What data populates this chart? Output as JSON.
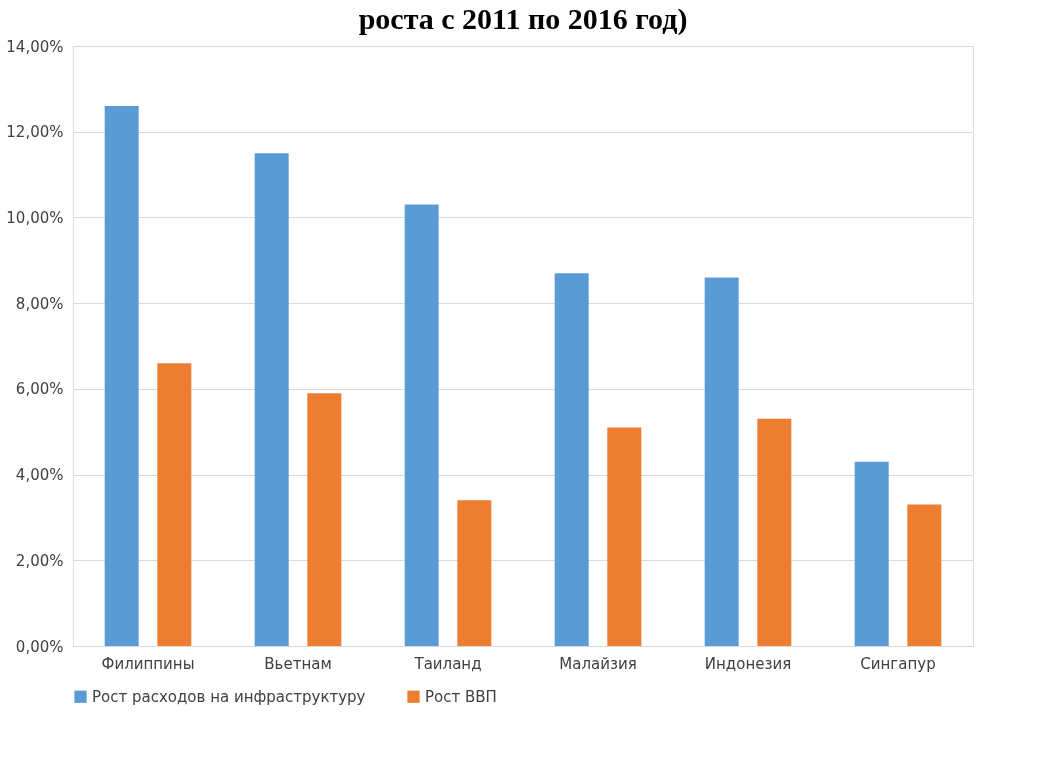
{
  "chart_data": {
    "type": "bar",
    "title": "роста с 2011 по 2016 год)",
    "categories": [
      "Филиппины",
      "Вьетнам",
      "Таиланд",
      "Малайзия",
      "Индонезия",
      "Сингапур"
    ],
    "series": [
      {
        "name": "Рост расходов на инфраструктуру",
        "color": "#5b9bd5",
        "values": [
          12.6,
          11.5,
          10.3,
          8.7,
          8.6,
          4.3
        ]
      },
      {
        "name": "Рост ВВП",
        "color": "#ed7d31",
        "values": [
          6.6,
          5.9,
          3.4,
          5.1,
          5.3,
          3.3
        ]
      }
    ],
    "ylim": [
      0,
      14
    ],
    "yticks": [
      {
        "value": 0,
        "label": "0,00%"
      },
      {
        "value": 2,
        "label": "2,00%"
      },
      {
        "value": 4,
        "label": "4,00%"
      },
      {
        "value": 6,
        "label": "6,00%"
      },
      {
        "value": 8,
        "label": "8,00%"
      },
      {
        "value": 10,
        "label": "10,00%"
      },
      {
        "value": 12,
        "label": "12,00%"
      },
      {
        "value": 14,
        "label": "14,00%"
      }
    ],
    "grid": "y",
    "legend": "bottom"
  }
}
